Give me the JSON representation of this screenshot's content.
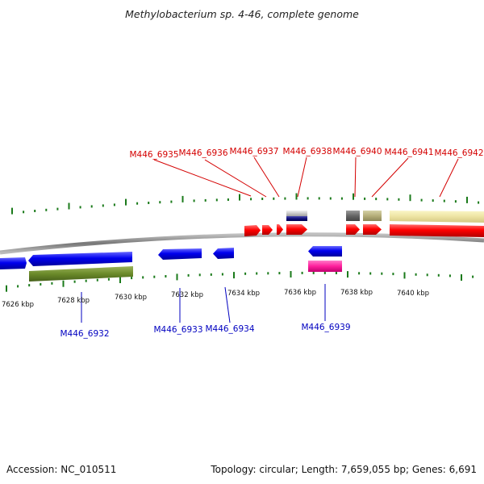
{
  "title": "Methylobacterium sp. 4-46, complete genome",
  "footer": {
    "accession": "Accession: NC_010511",
    "summary": "Topology: circular; Length: 7,659,055 bp; Genes: 6,691"
  },
  "colors": {
    "forward_cds": "#ff0000",
    "reverse_cds": "#0000ee",
    "forward_label": "#d40000",
    "reverse_label": "#0000c0",
    "backbone": "#808080",
    "tick": "#1a7a1a"
  },
  "axis_labels": [
    "7626 kbp",
    "7628 kbp",
    "7630 kbp",
    "7632 kbp",
    "7634 kbp",
    "7636 kbp",
    "7638 kbp",
    "7640 kbp"
  ],
  "top_genes": [
    "M446_6935",
    "M446_6936",
    "M446_6937",
    "M446_6938",
    "M446_6940",
    "M446_6941",
    "M446_6942"
  ],
  "bottom_genes": [
    "M446_6932",
    "M446_6933",
    "M446_6934",
    "M446_6939"
  ]
}
